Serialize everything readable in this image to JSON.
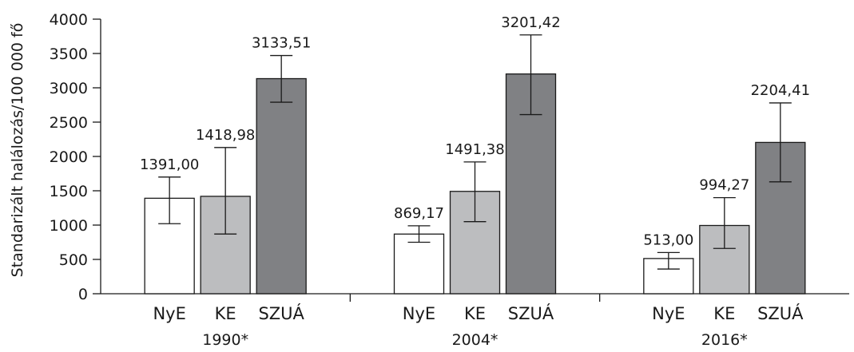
{
  "chart_data": {
    "type": "bar",
    "ylabel": "Standarizált halálozás/100 000 fő",
    "ylim": [
      0,
      4000
    ],
    "yticks": [
      0,
      500,
      1000,
      1500,
      2000,
      2500,
      3000,
      3500,
      4000
    ],
    "groups": [
      {
        "label": "1990*",
        "bars": [
          {
            "category": "NyE",
            "value": 1391.0,
            "value_label": "1391,00",
            "err_low": 1020,
            "err_high": 1700,
            "color": "#ffffff"
          },
          {
            "category": "KE",
            "value": 1418.98,
            "value_label": "1418,98",
            "err_low": 870,
            "err_high": 2130,
            "color": "#bcbdbf"
          },
          {
            "category": "SZUÁ",
            "value": 3133.51,
            "value_label": "3133,51",
            "err_low": 2790,
            "err_high": 3470,
            "color": "#808184"
          }
        ]
      },
      {
        "label": "2004*",
        "bars": [
          {
            "category": "NyE",
            "value": 869.17,
            "value_label": "869,17",
            "err_low": 750,
            "err_high": 990,
            "color": "#ffffff"
          },
          {
            "category": "KE",
            "value": 1491.38,
            "value_label": "1491,38",
            "err_low": 1050,
            "err_high": 1920,
            "color": "#bcbdbf"
          },
          {
            "category": "SZUÁ",
            "value": 3201.42,
            "value_label": "3201,42",
            "err_low": 2610,
            "err_high": 3770,
            "color": "#808184"
          }
        ]
      },
      {
        "label": "2016*",
        "bars": [
          {
            "category": "NyE",
            "value": 513.0,
            "value_label": "513,00",
            "err_low": 360,
            "err_high": 600,
            "color": "#ffffff"
          },
          {
            "category": "KE",
            "value": 994.27,
            "value_label": "994,27",
            "err_low": 660,
            "err_high": 1400,
            "color": "#bcbdbf"
          },
          {
            "category": "SZUÁ",
            "value": 2204.41,
            "value_label": "2204,41",
            "err_low": 1630,
            "err_high": 2780,
            "color": "#808184"
          }
        ]
      }
    ],
    "legend": "none",
    "grid": false
  }
}
